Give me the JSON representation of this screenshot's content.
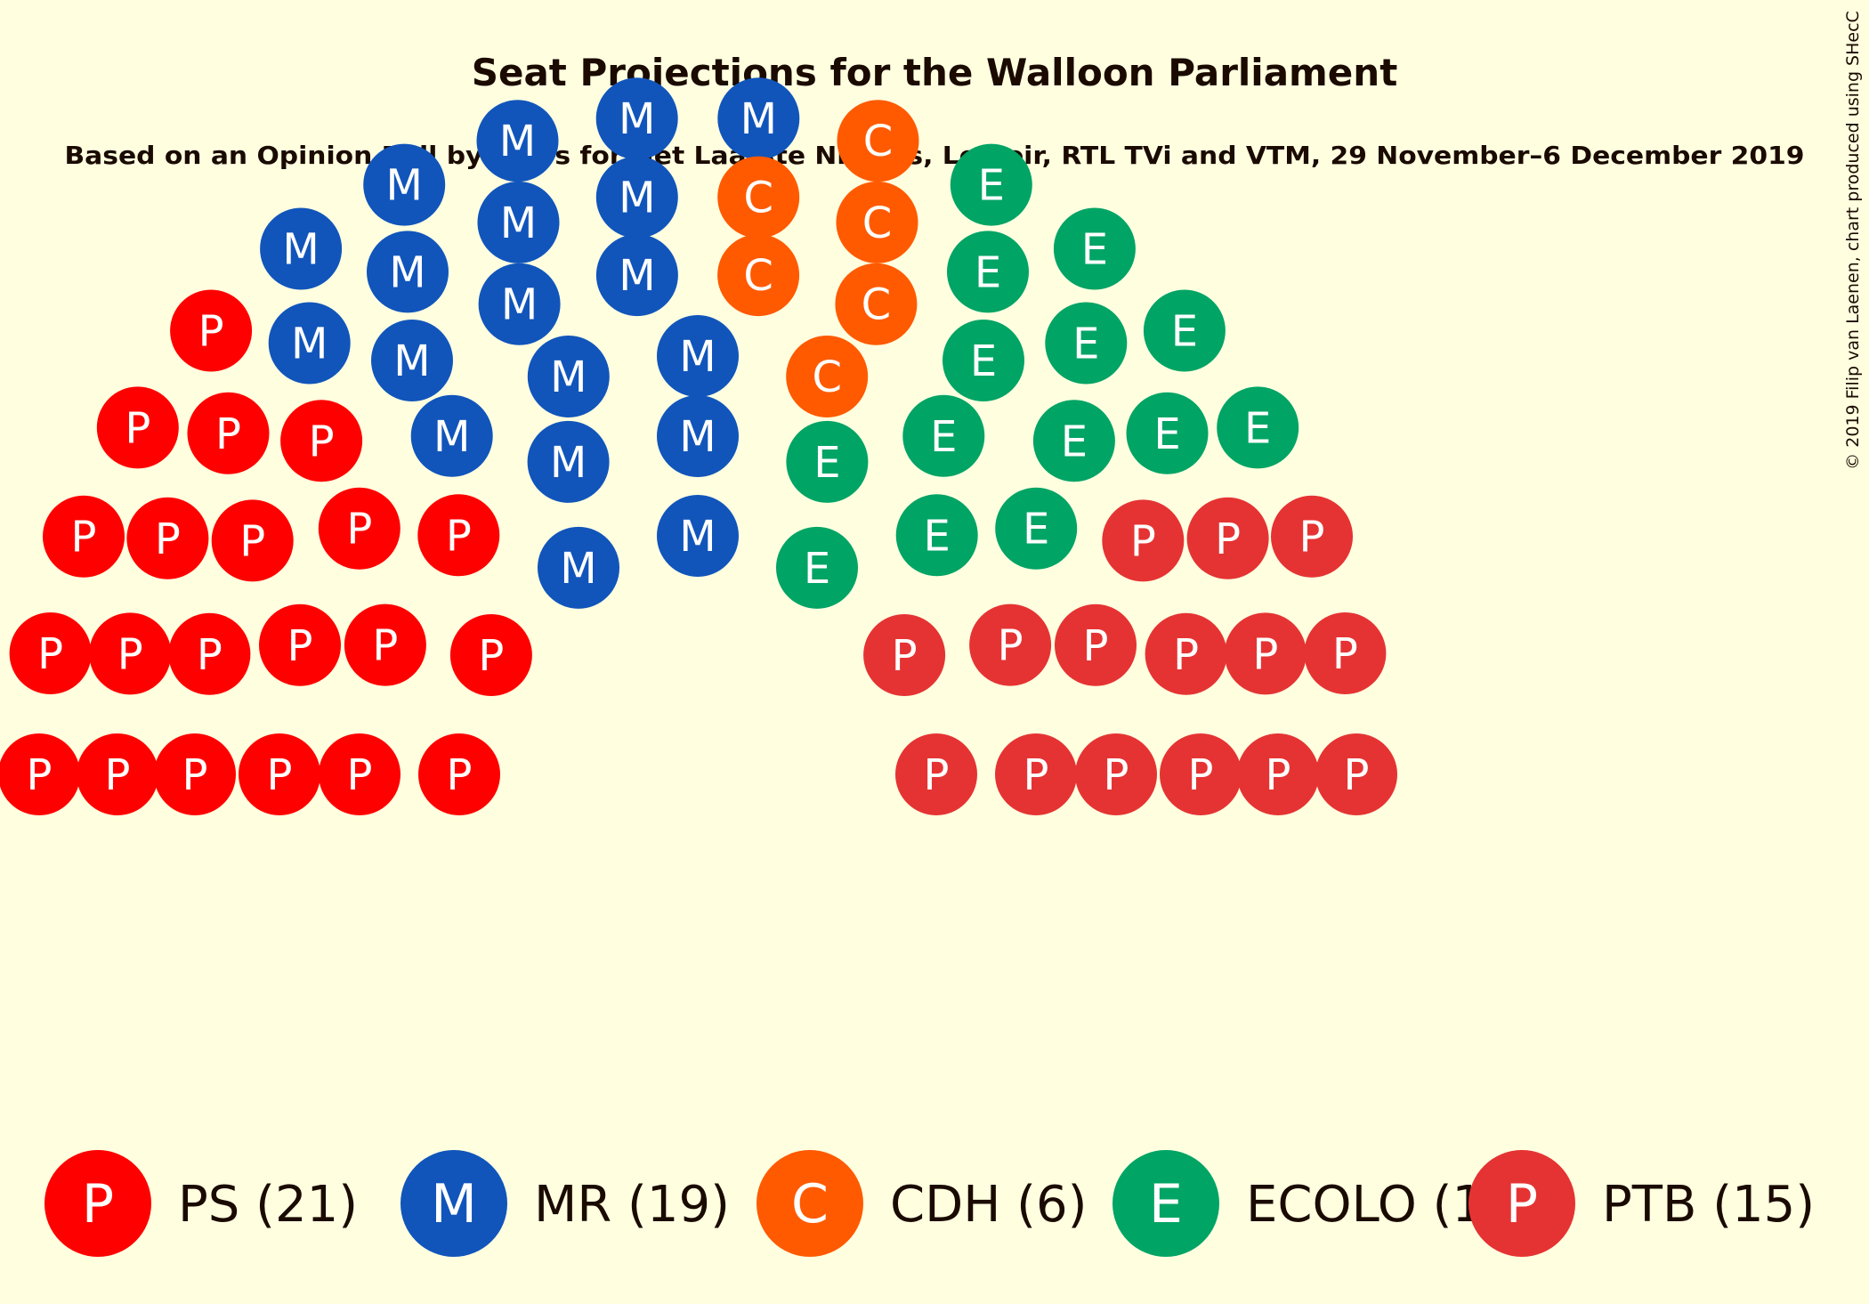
{
  "chart_data": {
    "type": "parliament",
    "title": "Seat Projections for the Walloon Parliament",
    "subtitle": "Based on an Opinion Poll by Ipsos for Het Laatste Nieuws, Le Soir, RTL TVi and VTM, 29 November–6 December 2019",
    "copyright": "© 2019 Filip van Laenen, chart produced using SHecC",
    "parties": [
      {
        "name": "PS",
        "letter": "P",
        "seats": 21,
        "color": "#ff0000",
        "legend_label": "PS (21)"
      },
      {
        "name": "MR",
        "letter": "M",
        "seats": 19,
        "color": "#1155bb",
        "legend_label": "MR (19)"
      },
      {
        "name": "CDH",
        "letter": "C",
        "seats": 6,
        "color": "#ff5a00",
        "legend_label": "CDH (6)"
      },
      {
        "name": "ECOLO",
        "letter": "E",
        "seats": 14,
        "color": "#00a465",
        "legend_label": "ECOLO (14)"
      },
      {
        "name": "PTB",
        "letter": "P",
        "seats": 15,
        "color": "#e53333",
        "legend_label": "PTB (15)"
      }
    ],
    "total_seats": 75
  }
}
